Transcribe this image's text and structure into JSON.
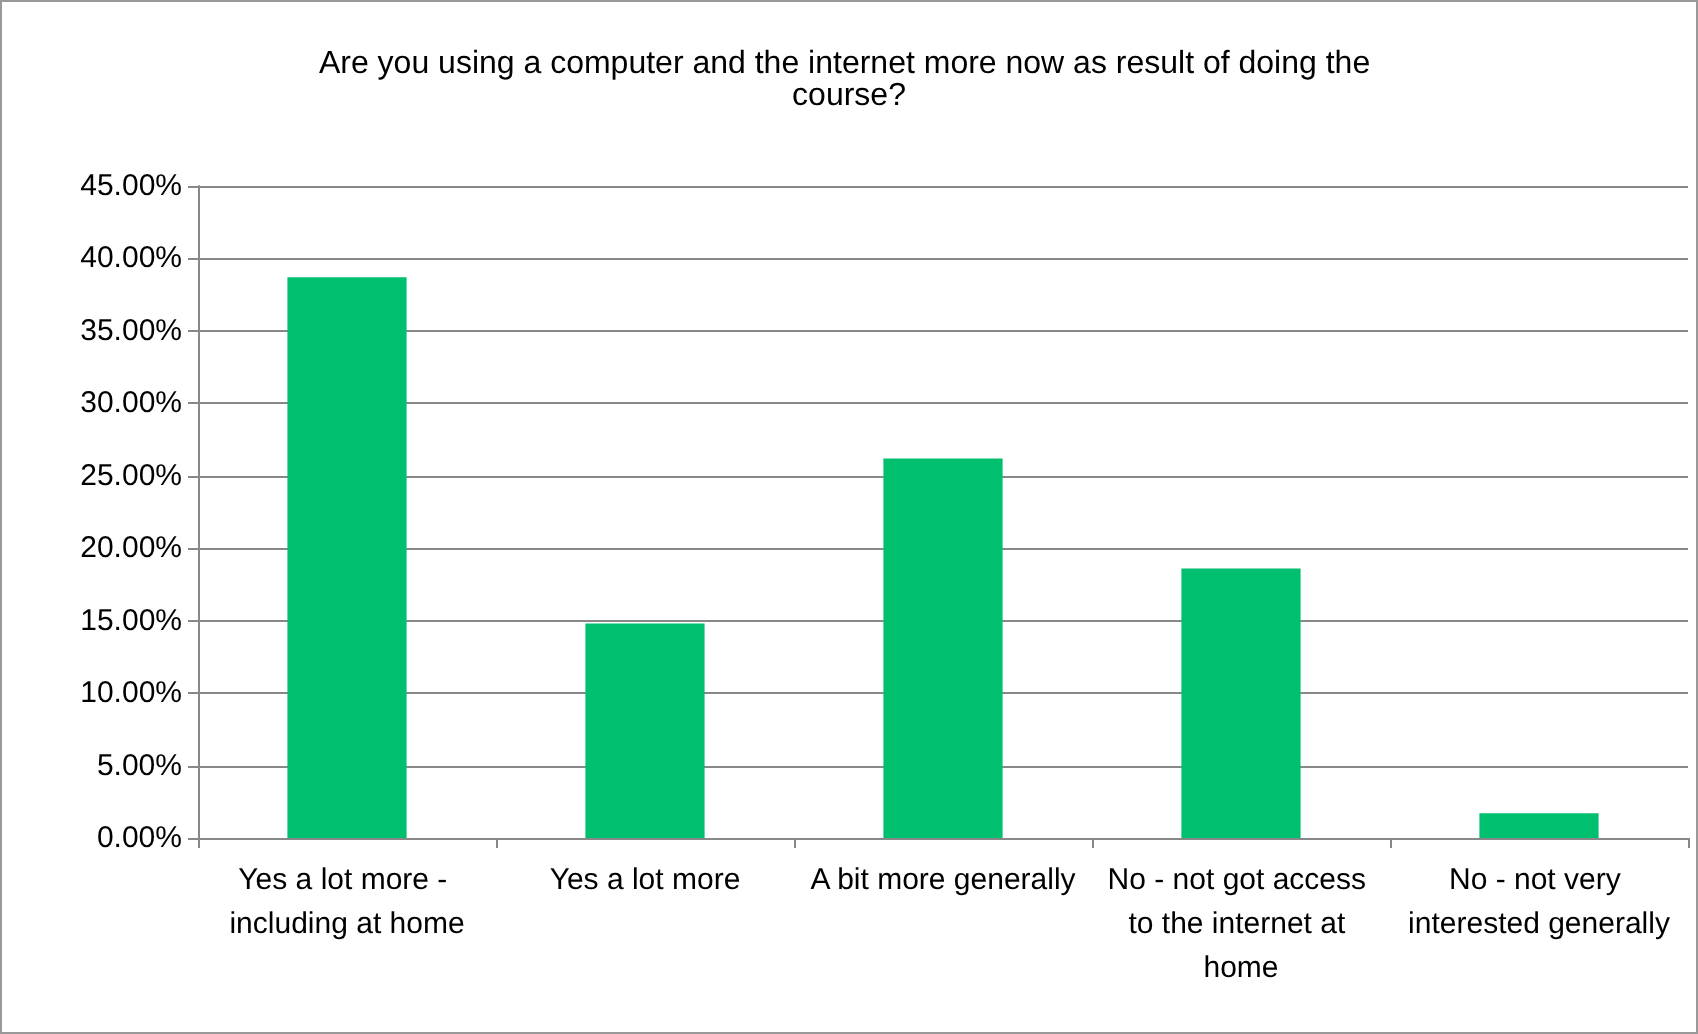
{
  "chart_data": {
    "type": "bar",
    "title": "Are you using a computer and the internet more now as result of doing the course?",
    "categories": [
      "Yes a lot more - including at home",
      "Yes a lot more",
      "A bit more generally",
      "No - not got access to the internet at home",
      "No - not very interested generally"
    ],
    "values": [
      38.7,
      14.8,
      26.2,
      18.6,
      1.7
    ],
    "color": "#00bf6f",
    "ylim": [
      0,
      45
    ],
    "yticks": [
      {
        "value": 0,
        "label": "0.00%"
      },
      {
        "value": 5,
        "label": "5.00%"
      },
      {
        "value": 10,
        "label": "10.00%"
      },
      {
        "value": 15,
        "label": "15.00%"
      },
      {
        "value": 20,
        "label": "20.00%"
      },
      {
        "value": 25,
        "label": "25.00%"
      },
      {
        "value": 30,
        "label": "30.00%"
      },
      {
        "value": 35,
        "label": "35.00%"
      },
      {
        "value": 40,
        "label": "40.00%"
      },
      {
        "value": 45,
        "label": "45.00%"
      }
    ],
    "grid": "y"
  }
}
